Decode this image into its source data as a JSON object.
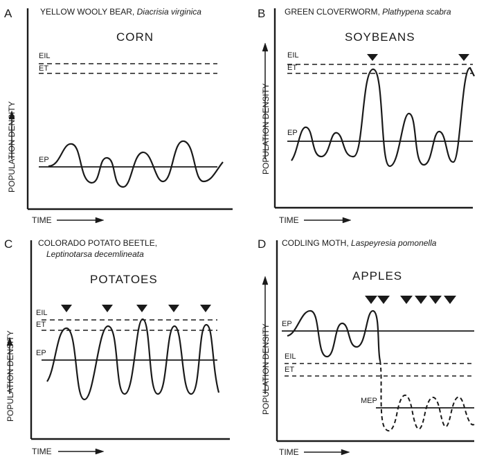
{
  "panels": [
    {
      "id": "A",
      "letter": "A",
      "pest_common": "YELLOW WOOLY BEAR,",
      "pest_latin": "Diacrisia virginica",
      "pest_latin_line2": "",
      "crop": "CORN",
      "y_axis_label": "POPULATION DENSITY",
      "x_axis_label": "TIME",
      "levels": {
        "EIL": "EIL",
        "ET": "ET",
        "EP": "EP",
        "MEP": ""
      },
      "treatments": 0
    },
    {
      "id": "B",
      "letter": "B",
      "pest_common": "GREEN CLOVERWORM,",
      "pest_latin": "Plathypena scabra",
      "pest_latin_line2": "",
      "crop": "SOYBEANS",
      "y_axis_label": "POPULATION DENSITY",
      "x_axis_label": "TIME",
      "levels": {
        "EIL": "EIL",
        "ET": "ET",
        "EP": "EP",
        "MEP": ""
      },
      "treatments": 2
    },
    {
      "id": "C",
      "letter": "C",
      "pest_common": "COLORADO POTATO BEETLE,",
      "pest_latin": "",
      "pest_latin_line2": "Leptinotarsa decemlineata",
      "crop": "POTATOES",
      "y_axis_label": "POPULATION DENSITY",
      "x_axis_label": "TIME",
      "levels": {
        "EIL": "EIL",
        "ET": "ET",
        "EP": "EP",
        "MEP": ""
      },
      "treatments": 5
    },
    {
      "id": "D",
      "letter": "D",
      "pest_common": "CODLING MOTH,",
      "pest_latin": "Laspeyresia pomonella",
      "pest_latin_line2": "",
      "crop": "APPLES",
      "y_axis_label": "POPULATION DENSITY",
      "x_axis_label": "TIME",
      "levels": {
        "EIL": "EIL",
        "ET": "ET",
        "EP": "EP",
        "MEP": "MEP"
      },
      "treatments": 5
    }
  ],
  "colors": {
    "ink": "#1a1a1a",
    "background": "#ffffff"
  }
}
